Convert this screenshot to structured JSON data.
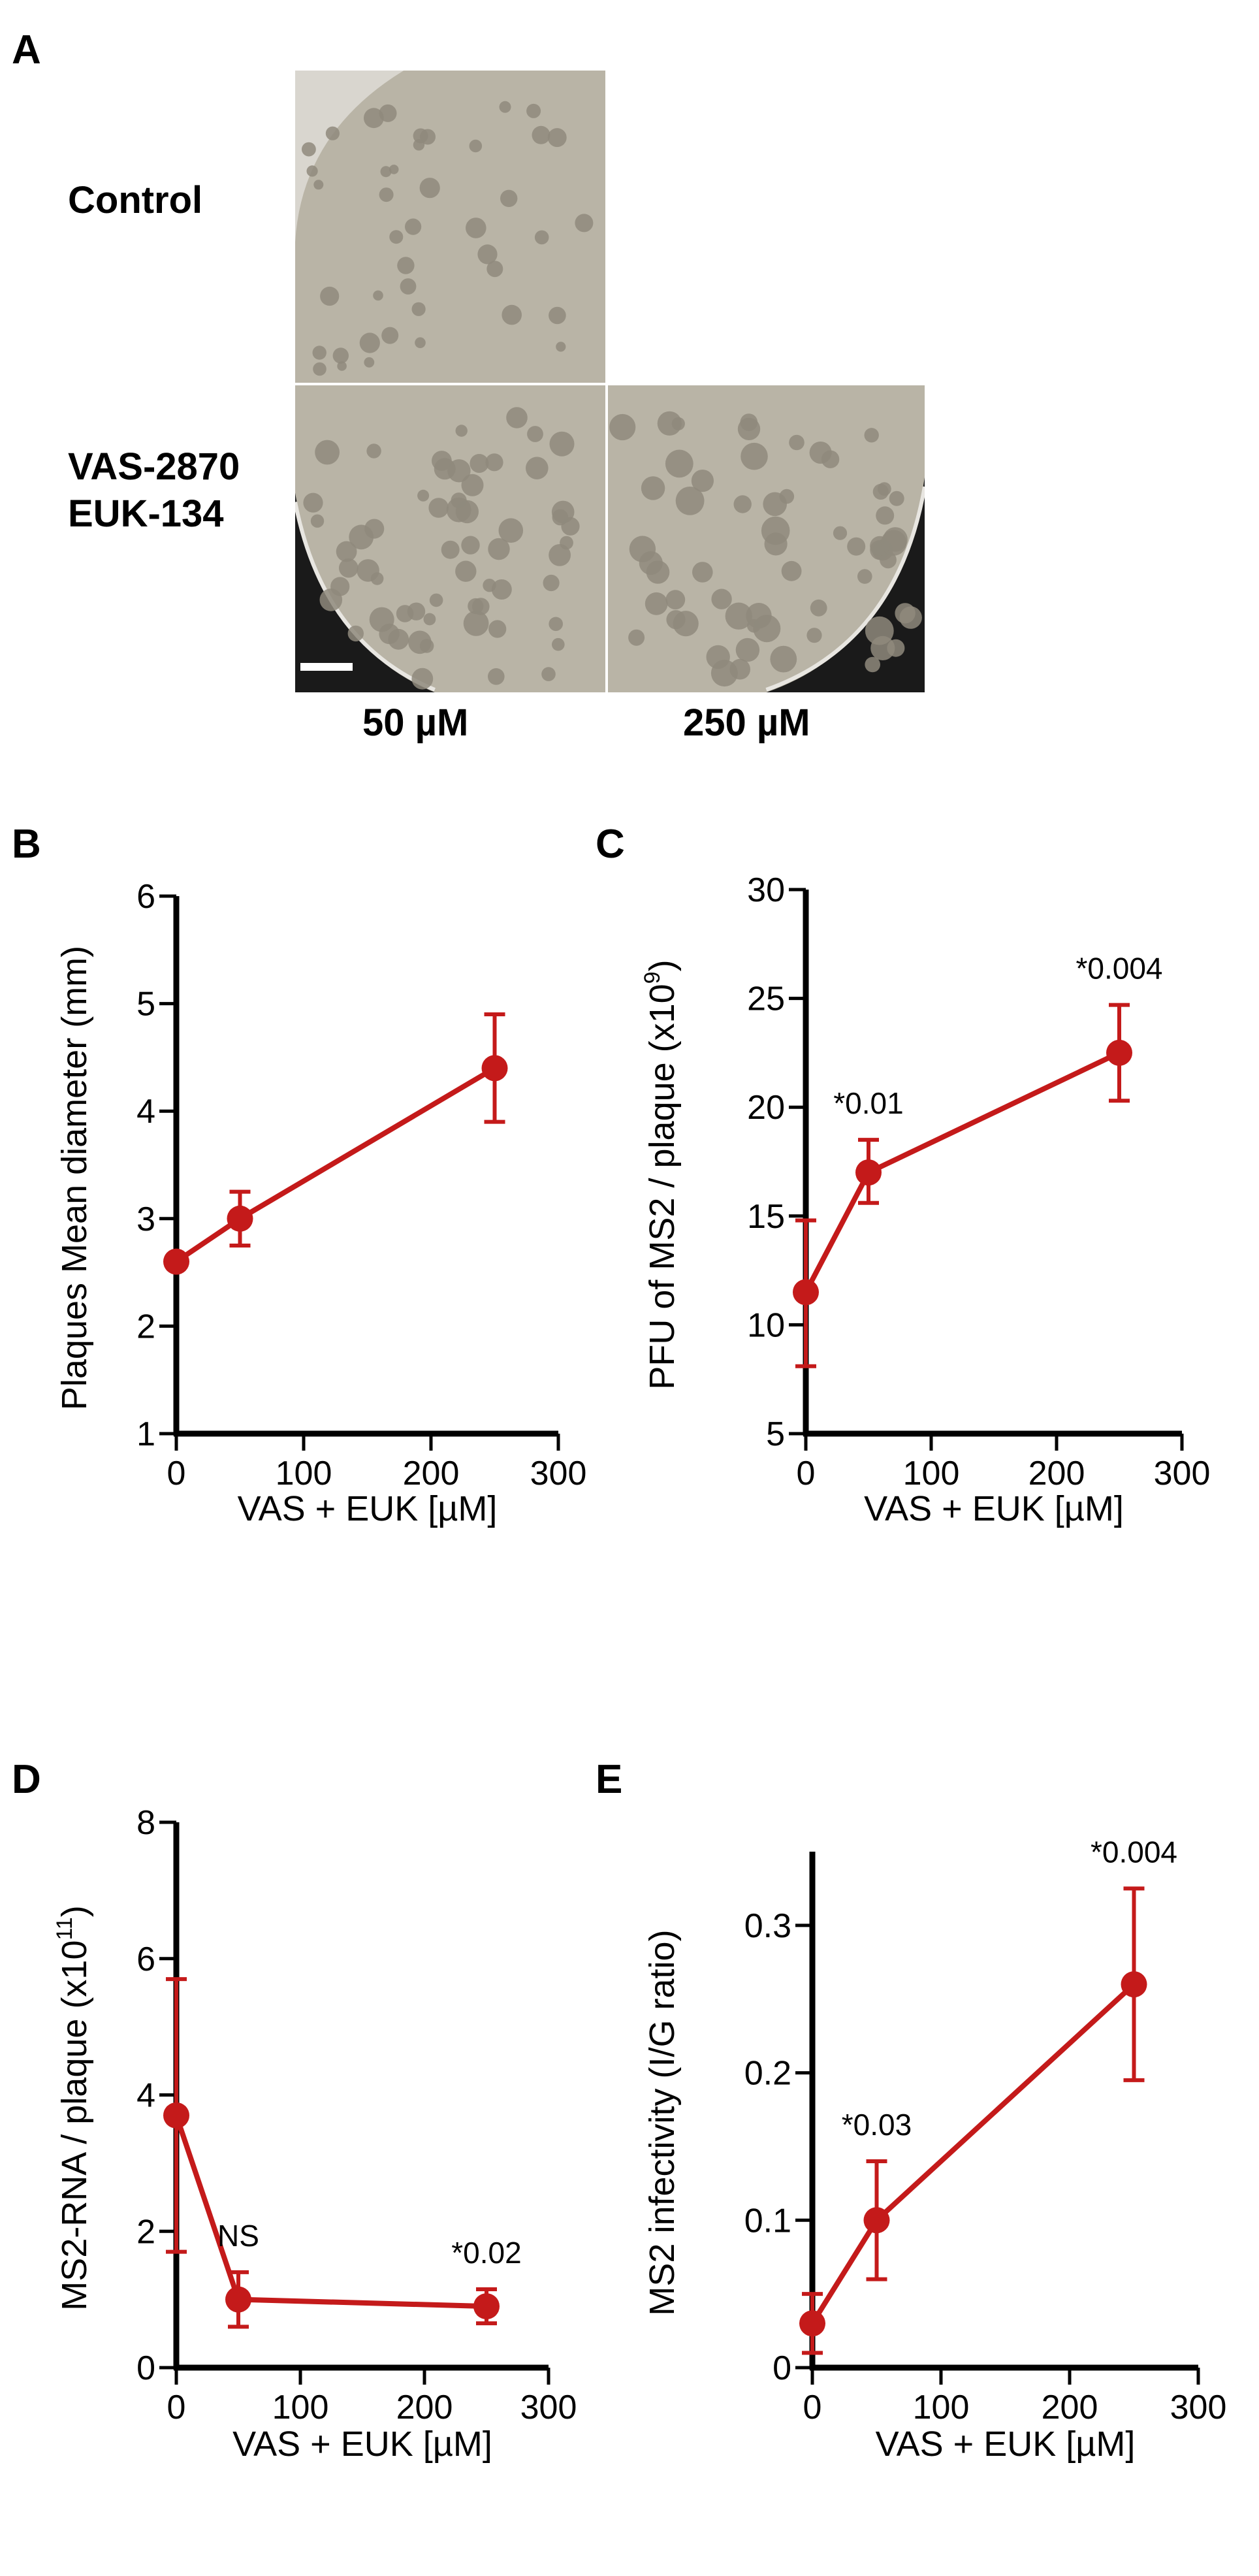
{
  "panel_a": {
    "letter": "A",
    "rows": [
      "Control",
      "VAS-2870",
      "EUK-134"
    ],
    "columns": [
      "50 µM",
      "250 µM"
    ],
    "plates": [
      "control-plate",
      "50uM-plate",
      "250uM-plate"
    ]
  },
  "colors": {
    "series": "#c41a1a",
    "axis": "#000000",
    "plate_bg": "#b9b4a6",
    "plaque": "#8f897c",
    "dish_rim": "#1a1a1a"
  },
  "chart_data": [
    {
      "panel": "B",
      "type": "line",
      "x": [
        0,
        50,
        250
      ],
      "y": [
        2.6,
        3.0,
        4.4
      ],
      "err_low": [
        0,
        0.25,
        0.5
      ],
      "err_high": [
        0,
        0.25,
        0.5
      ],
      "xlim": [
        0,
        300
      ],
      "ylim": [
        1,
        6
      ],
      "xticks": [
        0,
        100,
        200,
        300
      ],
      "yticks": [
        1,
        2,
        3,
        4,
        5,
        6
      ],
      "xlabel": "VAS + EUK  [µM]",
      "ylabel": "Plaques Mean diameter (mm)",
      "ylabel_sup": "",
      "ylabel_end": "",
      "annotations": [
        "",
        "",
        ""
      ]
    },
    {
      "panel": "C",
      "type": "line",
      "x": [
        0,
        50,
        250
      ],
      "y": [
        11.5,
        17.0,
        22.5
      ],
      "err_low": [
        3.4,
        1.4,
        2.2
      ],
      "err_high": [
        3.3,
        1.5,
        2.2
      ],
      "xlim": [
        0,
        300
      ],
      "ylim": [
        5,
        30
      ],
      "xticks": [
        0,
        100,
        200,
        300
      ],
      "yticks": [
        5,
        10,
        15,
        20,
        25,
        30
      ],
      "xlabel": "VAS + EUK  [µM]",
      "ylabel": "PFU of MS2 / plaque (x10",
      "ylabel_sup": "9",
      "ylabel_end": ")",
      "annotations": [
        "",
        "*0.01",
        "*0.004"
      ]
    },
    {
      "panel": "D",
      "type": "line",
      "x": [
        0,
        50,
        250
      ],
      "y": [
        3.7,
        1.0,
        0.9
      ],
      "err_low": [
        2.0,
        0.4,
        0.25
      ],
      "err_high": [
        2.0,
        0.4,
        0.25
      ],
      "xlim": [
        0,
        300
      ],
      "ylim": [
        0,
        8
      ],
      "xticks": [
        0,
        100,
        200,
        300
      ],
      "yticks": [
        0,
        2,
        4,
        6,
        8
      ],
      "xlabel": "VAS + EUK  [µM]",
      "ylabel": "MS2-RNA / plaque (x10",
      "ylabel_sup": "11",
      "ylabel_end": ")",
      "annotations": [
        "",
        "NS",
        "*0.02"
      ]
    },
    {
      "panel": "E",
      "type": "line",
      "x": [
        0,
        50,
        250
      ],
      "y": [
        0.03,
        0.1,
        0.26
      ],
      "err_low": [
        0.02,
        0.04,
        0.065
      ],
      "err_high": [
        0.02,
        0.04,
        0.065
      ],
      "xlim": [
        0,
        300
      ],
      "ylim": [
        0,
        0.35
      ],
      "xticks": [
        0,
        100,
        200,
        300
      ],
      "yticks": [
        0,
        0.1,
        0.2,
        0.3
      ],
      "xlabel": "VAS + EUK  [µM]",
      "ylabel": "MS2 infectivity (I/G ratio)",
      "ylabel_sup": "",
      "ylabel_end": "",
      "annotations": [
        "",
        "*0.03",
        "*0.004"
      ]
    }
  ]
}
